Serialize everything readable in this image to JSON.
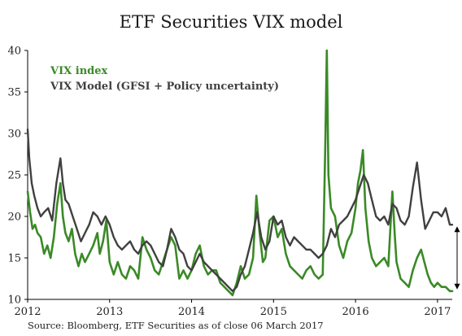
{
  "chart_data": {
    "type": "line",
    "title": "ETF Securities VIX model",
    "source": "Source: Bloomberg, ETF Securities as of close 06 March 2017",
    "xlabel": "",
    "ylabel": "",
    "xlim": [
      2012.0,
      2017.18
    ],
    "ylim": [
      10,
      40
    ],
    "x_ticks": [
      "2012",
      "2013",
      "2014",
      "2015",
      "2016",
      "2017"
    ],
    "y_ticks": [
      "10",
      "15",
      "20",
      "25",
      "30",
      "35",
      "40"
    ],
    "grid": false,
    "legend_position": "top-left",
    "annotation": "double-headed arrow between VIX index and VIX model near the end of the series",
    "series": [
      {
        "name": "VIX index",
        "color": "#3a8a26",
        "x": [
          2012.0,
          2012.03,
          2012.06,
          2012.09,
          2012.12,
          2012.16,
          2012.2,
          2012.24,
          2012.28,
          2012.32,
          2012.36,
          2012.4,
          2012.43,
          2012.46,
          2012.5,
          2012.54,
          2012.58,
          2012.62,
          2012.66,
          2012.7,
          2012.75,
          2012.8,
          2012.85,
          2012.88,
          2012.92,
          2012.96,
          2013.0,
          2013.05,
          2013.1,
          2013.15,
          2013.2,
          2013.25,
          2013.3,
          2013.35,
          2013.4,
          2013.45,
          2013.5,
          2013.55,
          2013.6,
          2013.65,
          2013.7,
          2013.75,
          2013.8,
          2013.85,
          2013.9,
          2013.95,
          2014.0,
          2014.05,
          2014.1,
          2014.15,
          2014.2,
          2014.25,
          2014.3,
          2014.35,
          2014.4,
          2014.45,
          2014.5,
          2014.55,
          2014.6,
          2014.65,
          2014.7,
          2014.75,
          2014.79,
          2014.83,
          2014.87,
          2014.9,
          2014.95,
          2015.0,
          2015.05,
          2015.1,
          2015.15,
          2015.2,
          2015.25,
          2015.3,
          2015.35,
          2015.4,
          2015.45,
          2015.5,
          2015.55,
          2015.6,
          2015.63,
          2015.65,
          2015.67,
          2015.7,
          2015.75,
          2015.8,
          2015.85,
          2015.9,
          2015.95,
          2016.0,
          2016.03,
          2016.06,
          2016.09,
          2016.12,
          2016.16,
          2016.2,
          2016.25,
          2016.3,
          2016.35,
          2016.4,
          2016.45,
          2016.48,
          2016.5,
          2016.55,
          2016.6,
          2016.65,
          2016.7,
          2016.75,
          2016.8,
          2016.84,
          2016.88,
          2016.92,
          2016.96,
          2017.0,
          2017.05,
          2017.1,
          2017.15,
          2017.18
        ],
        "values": [
          23.0,
          20.5,
          18.5,
          19.0,
          18.0,
          17.5,
          15.5,
          16.5,
          15.0,
          17.5,
          21.5,
          24.0,
          20.0,
          18.0,
          17.0,
          18.5,
          15.5,
          14.0,
          15.5,
          14.5,
          15.5,
          16.5,
          18.0,
          15.5,
          17.0,
          19.5,
          14.5,
          13.0,
          14.5,
          13.0,
          12.5,
          14.0,
          13.5,
          12.5,
          17.5,
          16.0,
          15.0,
          13.5,
          13.0,
          14.5,
          16.0,
          17.5,
          16.5,
          12.5,
          13.5,
          12.5,
          13.5,
          15.5,
          16.5,
          14.0,
          13.0,
          13.5,
          13.5,
          12.0,
          11.5,
          11.0,
          10.5,
          12.0,
          14.0,
          12.5,
          13.0,
          15.0,
          22.5,
          18.0,
          14.5,
          15.0,
          19.5,
          20.0,
          17.5,
          18.5,
          15.5,
          14.0,
          13.5,
          13.0,
          12.5,
          13.5,
          14.0,
          13.0,
          12.5,
          13.0,
          28.0,
          40.0,
          25.0,
          21.0,
          20.0,
          16.5,
          15.0,
          17.0,
          18.0,
          21.0,
          24.0,
          25.5,
          28.0,
          21.0,
          17.0,
          15.0,
          14.0,
          14.5,
          15.0,
          14.0,
          23.0,
          17.5,
          14.5,
          12.5,
          12.0,
          11.5,
          13.5,
          15.0,
          16.0,
          14.5,
          13.0,
          12.0,
          11.5,
          12.0,
          11.5,
          11.5,
          11.0,
          11.0
        ]
      },
      {
        "name": "VIX Model (GFSI + Policy uncertainty)",
        "color": "#404040",
        "x": [
          2012.0,
          2012.02,
          2012.05,
          2012.08,
          2012.12,
          2012.16,
          2012.2,
          2012.25,
          2012.3,
          2012.35,
          2012.4,
          2012.43,
          2012.46,
          2012.5,
          2012.55,
          2012.6,
          2012.65,
          2012.7,
          2012.75,
          2012.8,
          2012.85,
          2012.9,
          2012.95,
          2013.0,
          2013.05,
          2013.1,
          2013.15,
          2013.2,
          2013.25,
          2013.3,
          2013.35,
          2013.4,
          2013.45,
          2013.5,
          2013.55,
          2013.6,
          2013.65,
          2013.7,
          2013.75,
          2013.8,
          2013.85,
          2013.9,
          2013.95,
          2014.0,
          2014.05,
          2014.1,
          2014.15,
          2014.2,
          2014.25,
          2014.3,
          2014.35,
          2014.4,
          2014.45,
          2014.5,
          2014.55,
          2014.6,
          2014.65,
          2014.7,
          2014.75,
          2014.8,
          2014.85,
          2014.9,
          2014.95,
          2015.0,
          2015.05,
          2015.1,
          2015.15,
          2015.2,
          2015.25,
          2015.3,
          2015.35,
          2015.4,
          2015.45,
          2015.5,
          2015.55,
          2015.6,
          2015.65,
          2015.7,
          2015.75,
          2015.8,
          2015.85,
          2015.9,
          2015.95,
          2016.0,
          2016.05,
          2016.1,
          2016.15,
          2016.2,
          2016.25,
          2016.3,
          2016.35,
          2016.4,
          2016.45,
          2016.5,
          2016.55,
          2016.6,
          2016.65,
          2016.7,
          2016.75,
          2016.8,
          2016.85,
          2016.9,
          2016.95,
          2017.0,
          2017.05,
          2017.1,
          2017.15,
          2017.18
        ],
        "values": [
          30.5,
          27.0,
          24.0,
          22.5,
          21.0,
          20.0,
          20.5,
          21.0,
          19.5,
          24.0,
          27.0,
          24.0,
          22.0,
          21.5,
          20.0,
          18.5,
          17.0,
          18.0,
          19.0,
          20.5,
          20.0,
          19.0,
          20.0,
          19.0,
          17.5,
          16.5,
          16.0,
          16.5,
          17.0,
          16.0,
          15.5,
          16.5,
          17.0,
          16.5,
          15.5,
          14.5,
          14.0,
          16.0,
          18.5,
          17.5,
          16.0,
          15.5,
          14.0,
          13.5,
          14.5,
          15.5,
          14.5,
          14.0,
          13.5,
          13.0,
          12.5,
          12.0,
          11.5,
          11.0,
          11.5,
          13.0,
          14.0,
          16.0,
          18.0,
          20.5,
          17.5,
          16.0,
          17.0,
          20.0,
          19.0,
          19.5,
          17.5,
          16.5,
          17.5,
          17.0,
          16.5,
          16.0,
          16.0,
          15.5,
          15.0,
          15.5,
          16.5,
          18.5,
          17.5,
          19.0,
          19.5,
          20.0,
          21.0,
          22.0,
          23.5,
          25.0,
          24.0,
          22.0,
          20.0,
          19.5,
          20.0,
          19.0,
          21.5,
          21.0,
          19.5,
          19.0,
          20.0,
          23.5,
          26.5,
          22.0,
          18.5,
          19.5,
          20.5,
          20.5,
          20.0,
          21.0,
          19.0,
          19.0
        ]
      }
    ]
  }
}
